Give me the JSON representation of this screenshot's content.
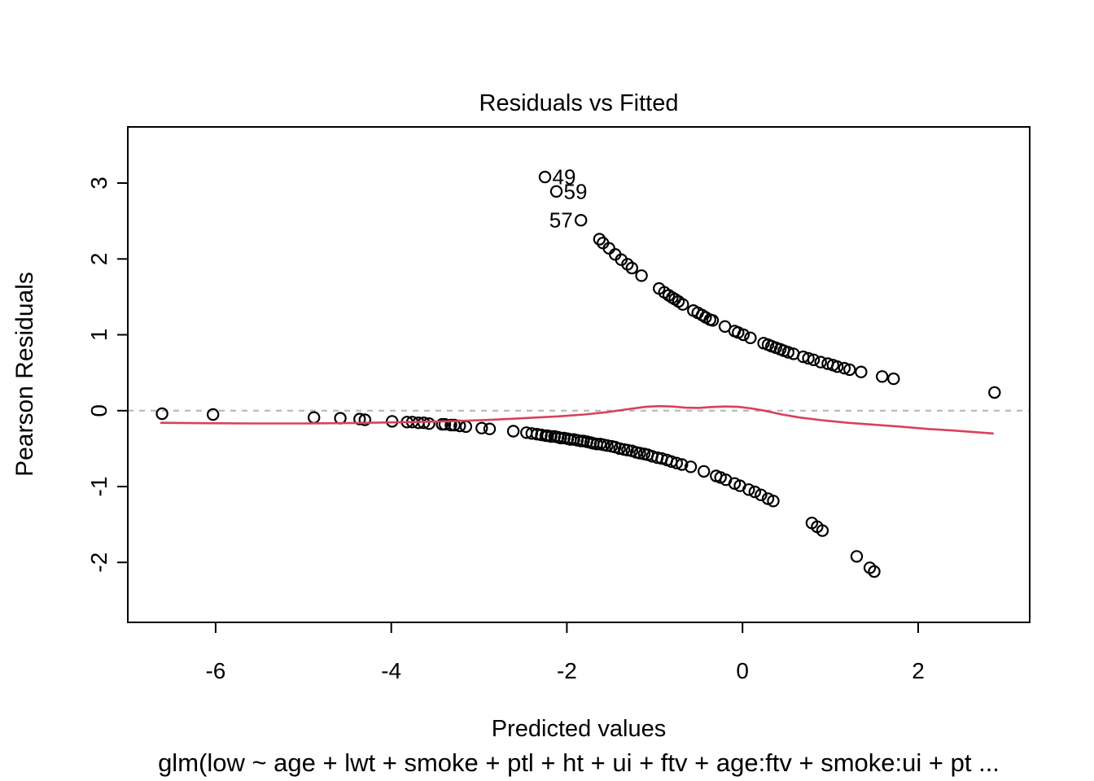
{
  "figure": {
    "title": "Residuals vs Fitted",
    "xlabel": "Predicted values",
    "ylabel": "Pearson Residuals",
    "caption": "glm(low ~ age + lwt + smoke + ptl + ht + ui + ftv + age:ftv + smoke:ui + pt ..."
  },
  "chart_data": {
    "type": "scatter",
    "title": "Residuals vs Fitted",
    "xlabel": "Predicted values",
    "ylabel": "Pearson Residuals",
    "sub_caption": "glm(low ~ age + lwt + smoke + ptl + ht + ui + ftv + age:ftv + smoke:ui + pt ...",
    "xlim": [
      -7.0,
      3.27
    ],
    "ylim": [
      -2.79,
      3.74
    ],
    "x_ticks": [
      -6,
      -4,
      -2,
      0,
      2
    ],
    "y_ticks": [
      -2,
      -1,
      0,
      1,
      2,
      3
    ],
    "grid": "off",
    "legend": "none",
    "point_color": "#000000",
    "smoother_color": "#d9415a",
    "zero_line": {
      "y": 0,
      "style": "dotted",
      "color": "#bdbdbd"
    },
    "labeled_points": [
      {
        "label": "49",
        "x": -2.25,
        "y": 3.08,
        "side": "right"
      },
      {
        "label": "59",
        "x": -2.12,
        "y": 2.89,
        "side": "right"
      },
      {
        "label": "57",
        "x": -1.84,
        "y": 2.51,
        "side": "left"
      }
    ],
    "series": [
      {
        "name": "positive-residuals",
        "points": [
          [
            -2.25,
            3.08
          ],
          [
            -2.12,
            2.89
          ],
          [
            -1.84,
            2.51
          ],
          [
            -1.63,
            2.26
          ],
          [
            -1.59,
            2.21
          ],
          [
            -1.52,
            2.14
          ],
          [
            -1.45,
            2.06
          ],
          [
            -1.38,
            1.99
          ],
          [
            -1.31,
            1.93
          ],
          [
            -1.26,
            1.88
          ],
          [
            -1.15,
            1.78
          ],
          [
            -0.95,
            1.61
          ],
          [
            -0.89,
            1.56
          ],
          [
            -0.84,
            1.52
          ],
          [
            -0.8,
            1.49
          ],
          [
            -0.77,
            1.47
          ],
          [
            -0.73,
            1.44
          ],
          [
            -0.68,
            1.4
          ],
          [
            -0.56,
            1.32
          ],
          [
            -0.51,
            1.29
          ],
          [
            -0.46,
            1.26
          ],
          [
            -0.42,
            1.23
          ],
          [
            -0.37,
            1.2
          ],
          [
            -0.34,
            1.19
          ],
          [
            -0.2,
            1.11
          ],
          [
            -0.09,
            1.05
          ],
          [
            -0.05,
            1.03
          ],
          [
            0.01,
            1.0
          ],
          [
            0.09,
            0.96
          ],
          [
            0.24,
            0.89
          ],
          [
            0.29,
            0.87
          ],
          [
            0.33,
            0.85
          ],
          [
            0.38,
            0.83
          ],
          [
            0.43,
            0.81
          ],
          [
            0.47,
            0.79
          ],
          [
            0.52,
            0.77
          ],
          [
            0.58,
            0.75
          ],
          [
            0.69,
            0.71
          ],
          [
            0.75,
            0.69
          ],
          [
            0.81,
            0.67
          ],
          [
            0.89,
            0.64
          ],
          [
            0.97,
            0.62
          ],
          [
            1.03,
            0.6
          ],
          [
            1.08,
            0.58
          ],
          [
            1.16,
            0.56
          ],
          [
            1.22,
            0.54
          ],
          [
            1.35,
            0.51
          ],
          [
            1.59,
            0.45
          ],
          [
            1.72,
            0.42
          ],
          [
            2.87,
            0.24
          ]
        ]
      },
      {
        "name": "negative-residuals",
        "points": [
          [
            -6.61,
            -0.04
          ],
          [
            -6.03,
            -0.05
          ],
          [
            -4.88,
            -0.09
          ],
          [
            -4.58,
            -0.1
          ],
          [
            -4.36,
            -0.11
          ],
          [
            -4.3,
            -0.12
          ],
          [
            -3.99,
            -0.14
          ],
          [
            -3.82,
            -0.15
          ],
          [
            -3.76,
            -0.15
          ],
          [
            -3.69,
            -0.16
          ],
          [
            -3.63,
            -0.16
          ],
          [
            -3.57,
            -0.17
          ],
          [
            -3.42,
            -0.18
          ],
          [
            -3.39,
            -0.18
          ],
          [
            -3.32,
            -0.19
          ],
          [
            -3.28,
            -0.19
          ],
          [
            -3.22,
            -0.2
          ],
          [
            -3.15,
            -0.21
          ],
          [
            -2.97,
            -0.23
          ],
          [
            -2.88,
            -0.24
          ],
          [
            -2.61,
            -0.27
          ],
          [
            -2.46,
            -0.29
          ],
          [
            -2.4,
            -0.3
          ],
          [
            -2.34,
            -0.31
          ],
          [
            -2.29,
            -0.32
          ],
          [
            -2.24,
            -0.33
          ],
          [
            -2.22,
            -0.33
          ],
          [
            -2.18,
            -0.34
          ],
          [
            -2.14,
            -0.34
          ],
          [
            -2.1,
            -0.35
          ],
          [
            -2.07,
            -0.36
          ],
          [
            -2.03,
            -0.36
          ],
          [
            -1.99,
            -0.37
          ],
          [
            -1.96,
            -0.38
          ],
          [
            -1.92,
            -0.38
          ],
          [
            -1.88,
            -0.39
          ],
          [
            -1.84,
            -0.4
          ],
          [
            -1.81,
            -0.4
          ],
          [
            -1.77,
            -0.41
          ],
          [
            -1.73,
            -0.42
          ],
          [
            -1.7,
            -0.43
          ],
          [
            -1.66,
            -0.44
          ],
          [
            -1.62,
            -0.44
          ],
          [
            -1.58,
            -0.45
          ],
          [
            -1.54,
            -0.46
          ],
          [
            -1.49,
            -0.47
          ],
          [
            -1.45,
            -0.48
          ],
          [
            -1.4,
            -0.5
          ],
          [
            -1.35,
            -0.51
          ],
          [
            -1.31,
            -0.52
          ],
          [
            -1.26,
            -0.53
          ],
          [
            -1.21,
            -0.55
          ],
          [
            -1.17,
            -0.56
          ],
          [
            -1.12,
            -0.57
          ],
          [
            -1.08,
            -0.58
          ],
          [
            -1.03,
            -0.6
          ],
          [
            -0.97,
            -0.62
          ],
          [
            -0.92,
            -0.63
          ],
          [
            -0.86,
            -0.65
          ],
          [
            -0.81,
            -0.67
          ],
          [
            -0.75,
            -0.69
          ],
          [
            -0.69,
            -0.71
          ],
          [
            -0.59,
            -0.74
          ],
          [
            -0.44,
            -0.8
          ],
          [
            -0.3,
            -0.86
          ],
          [
            -0.25,
            -0.88
          ],
          [
            -0.19,
            -0.91
          ],
          [
            -0.09,
            -0.96
          ],
          [
            -0.03,
            -0.99
          ],
          [
            0.07,
            -1.04
          ],
          [
            0.14,
            -1.07
          ],
          [
            0.21,
            -1.11
          ],
          [
            0.29,
            -1.16
          ],
          [
            0.35,
            -1.19
          ],
          [
            0.79,
            -1.48
          ],
          [
            0.85,
            -1.53
          ],
          [
            0.91,
            -1.58
          ],
          [
            1.3,
            -1.92
          ],
          [
            1.45,
            -2.07
          ],
          [
            1.5,
            -2.12
          ]
        ]
      }
    ],
    "smoother": [
      [
        -6.62,
        -0.16
      ],
      [
        -6.1,
        -0.165
      ],
      [
        -5.6,
        -0.168
      ],
      [
        -5.0,
        -0.168
      ],
      [
        -4.4,
        -0.162
      ],
      [
        -3.8,
        -0.15
      ],
      [
        -3.3,
        -0.138
      ],
      [
        -2.9,
        -0.122
      ],
      [
        -2.5,
        -0.1
      ],
      [
        -2.1,
        -0.075
      ],
      [
        -1.8,
        -0.05
      ],
      [
        -1.55,
        -0.02
      ],
      [
        -1.3,
        0.02
      ],
      [
        -1.1,
        0.05
      ],
      [
        -0.95,
        0.06
      ],
      [
        -0.8,
        0.055
      ],
      [
        -0.65,
        0.04
      ],
      [
        -0.5,
        0.036
      ],
      [
        -0.35,
        0.048
      ],
      [
        -0.2,
        0.055
      ],
      [
        -0.05,
        0.05
      ],
      [
        0.1,
        0.03
      ],
      [
        0.25,
        0.0
      ],
      [
        0.45,
        -0.05
      ],
      [
        0.65,
        -0.09
      ],
      [
        0.9,
        -0.125
      ],
      [
        1.2,
        -0.16
      ],
      [
        1.5,
        -0.185
      ],
      [
        1.8,
        -0.21
      ],
      [
        2.1,
        -0.24
      ],
      [
        2.4,
        -0.262
      ],
      [
        2.65,
        -0.283
      ],
      [
        2.85,
        -0.3
      ]
    ]
  }
}
